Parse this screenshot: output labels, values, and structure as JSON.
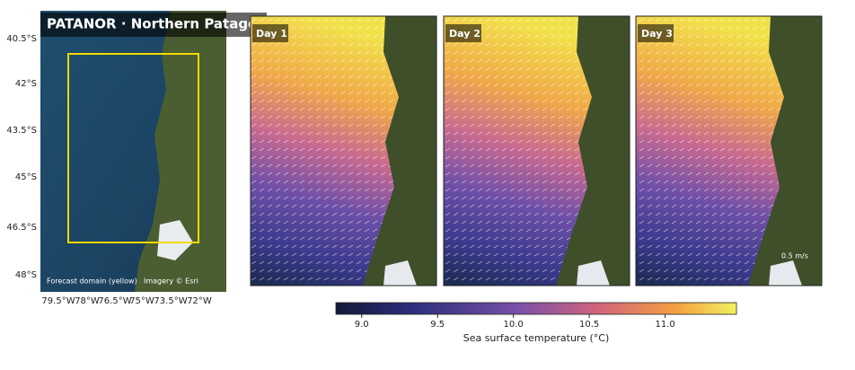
{
  "overview": {
    "title": "PATANOR · Northern Patagon",
    "lat_labels": [
      "40.5°S",
      "42°S",
      "43.5°S",
      "45°S",
      "46.5°S",
      "48°S"
    ],
    "lon_labels": [
      "79.5°W",
      "78°W",
      "76.5°W",
      "75°W",
      "73.5°W",
      "72°W"
    ],
    "domain_note": "Forecast domain (yellow)",
    "credit": "Imagery © Esri"
  },
  "panels": [
    {
      "label": "Day 1"
    },
    {
      "label": "Day 2"
    },
    {
      "label": "Day 3"
    }
  ],
  "scale_note": "0.5 m/s",
  "colorbar": {
    "label": "Sea surface temperature (°C)",
    "lim": [
      8.83,
      11.47
    ],
    "ticks": [
      {
        "value": 9.0,
        "label": "9.0"
      },
      {
        "value": 9.5,
        "label": "9.5"
      },
      {
        "value": 10.0,
        "label": "10.0"
      },
      {
        "value": 10.5,
        "label": "10.5"
      },
      {
        "value": 11.0,
        "label": "11.0"
      }
    ]
  }
}
